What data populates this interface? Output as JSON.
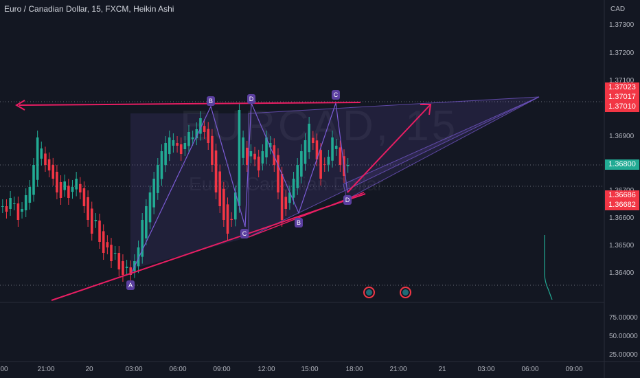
{
  "header": {
    "title": "Euro / Canadian Dollar, 15, FXCM, Heikin Ashi"
  },
  "watermark": {
    "symbol": "EURCAD, 15",
    "description": "Euro / Canadian Dollar"
  },
  "price_axis": {
    "currency": "CAD",
    "ticks": [
      "1.37300",
      "1.37200",
      "1.37100",
      "1.36900",
      "1.36700",
      "1.36600",
      "1.36500",
      "1.36400"
    ]
  },
  "price_labels": [
    {
      "value": "1.37023",
      "color": "#f23645"
    },
    {
      "value": "1.37017",
      "color": "#f23645"
    },
    {
      "value": "1.37010",
      "color": "#f23645"
    },
    {
      "value": "1.36800",
      "color": "#22ab94"
    },
    {
      "value": "1.36686",
      "color": "#f23645"
    },
    {
      "value": "1.36682",
      "color": "#f23645"
    }
  ],
  "indicator_axis": {
    "ticks": [
      "75.00000",
      "50.00000",
      "25.00000"
    ]
  },
  "time_axis": {
    "ticks": [
      "00",
      "21:00",
      "20",
      "03:00",
      "06:00",
      "09:00",
      "12:00",
      "15:00",
      "18:00",
      "21:00",
      "21",
      "03:00",
      "06:00",
      "09:00"
    ]
  },
  "pattern_points": [
    "A",
    "B",
    "C",
    "D",
    "B",
    "C",
    "D"
  ],
  "colors": {
    "up": "#22ab94",
    "down": "#f23645",
    "pattern": "#7b5bd6",
    "trend": "#e91e63"
  },
  "chart_data": {
    "type": "candlestick",
    "series": [
      {
        "name": "EURCAD",
        "x_start": "19 18:45",
        "interval": "15m",
        "close": [
          1.3665,
          1.3663,
          1.3668,
          1.3666,
          1.366,
          1.3664,
          1.3669,
          1.3672,
          1.368,
          1.369,
          1.3686,
          1.368,
          1.3678,
          1.3675,
          1.367,
          1.3668,
          1.3674,
          1.3668,
          1.3672,
          1.3675,
          1.367,
          1.3665,
          1.366,
          1.3655,
          1.366,
          1.3652,
          1.3648,
          1.365,
          1.3645,
          1.3648,
          1.3642,
          1.364,
          1.3643,
          1.364,
          1.3645,
          1.365,
          1.366,
          1.3665,
          1.367,
          1.3675,
          1.368,
          1.3685,
          1.3688,
          1.369,
          1.3689,
          1.3687,
          1.3684,
          1.3688,
          1.3692,
          1.369,
          1.3693,
          1.3697,
          1.3692,
          1.3688,
          1.368,
          1.367,
          1.3665,
          1.366,
          1.3655,
          1.366,
          1.367,
          1.37,
          1.369,
          1.368,
          1.3685,
          1.3682,
          1.3678,
          1.3685,
          1.369,
          1.3688,
          1.368,
          1.367,
          1.366,
          1.3664,
          1.367,
          1.3675,
          1.368,
          1.3685,
          1.3689,
          1.3695,
          1.3688,
          1.3682,
          1.3675,
          1.368,
          1.3683,
          1.369,
          1.3687,
          1.368,
          1.3676,
          1.368
        ]
      }
    ],
    "ylim": [
      1.363,
      1.374
    ],
    "indicator": {
      "ticks": [
        25,
        50,
        75
      ]
    }
  }
}
